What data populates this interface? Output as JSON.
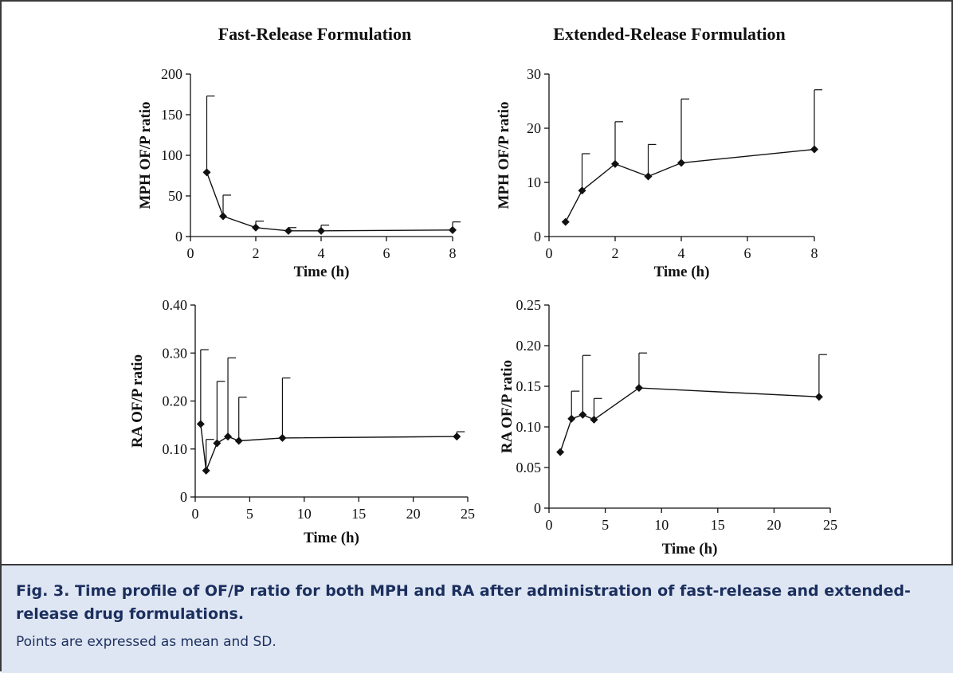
{
  "chart_data": [
    {
      "type": "line",
      "title": "Fast-Release Formulation",
      "xlabel": "Time (h)",
      "ylabel": "MPH OF/P ratio",
      "x_scale": "categorical",
      "xticks": [
        "0",
        "2",
        "4",
        "6",
        "8"
      ],
      "yticks": [
        "0",
        "50",
        "100",
        "150",
        "200"
      ],
      "ylim": [
        0,
        200
      ],
      "x": [
        0.5,
        1,
        2,
        3,
        4,
        8
      ],
      "series": [
        {
          "values": [
            79,
            25,
            11,
            7,
            7,
            8
          ],
          "sd": [
            94,
            26,
            8,
            4,
            7,
            10
          ]
        }
      ]
    },
    {
      "type": "line",
      "title": "Extended-Release Formulation",
      "xlabel": "Time (h)",
      "ylabel": "MPH OF/P ratio",
      "x_scale": "categorical",
      "xticks": [
        "0",
        "2",
        "4",
        "6",
        "8"
      ],
      "yticks": [
        "0",
        "10",
        "20",
        "30"
      ],
      "ylim": [
        0,
        30
      ],
      "x": [
        0.5,
        1,
        2,
        3,
        4,
        8
      ],
      "series": [
        {
          "values": [
            2.7,
            8.5,
            13.4,
            11.1,
            13.6,
            16.1
          ],
          "sd": [
            0,
            6.8,
            7.8,
            5.9,
            11.8,
            11.0
          ]
        }
      ]
    },
    {
      "type": "line",
      "title": "",
      "xlabel": "Time (h)",
      "ylabel": "RA OF/P ratio",
      "x_scale": "linear",
      "xticks": [
        "0",
        "5",
        "10",
        "15",
        "20",
        "25"
      ],
      "yticks": [
        "0",
        "0.10",
        "0.20",
        "0.30",
        "0.40"
      ],
      "ylim": [
        0,
        0.4
      ],
      "x": [
        0.5,
        1,
        2,
        3,
        4,
        8,
        24
      ],
      "series": [
        {
          "values": [
            0.152,
            0.055,
            0.112,
            0.126,
            0.117,
            0.123,
            0.126
          ],
          "sd": [
            0.155,
            0.065,
            0.129,
            0.164,
            0.091,
            0.125,
            0.01
          ]
        }
      ]
    },
    {
      "type": "line",
      "title": "",
      "xlabel": "Time (h)",
      "ylabel": "RA OF/P ratio",
      "x_scale": "linear",
      "xticks": [
        "0",
        "5",
        "10",
        "15",
        "20",
        "25"
      ],
      "yticks": [
        "0",
        "0.05",
        "0.10",
        "0.15",
        "0.20",
        "0.25"
      ],
      "ylim": [
        0,
        0.25
      ],
      "x": [
        1,
        2,
        3,
        4,
        8,
        24
      ],
      "series": [
        {
          "values": [
            0.069,
            0.11,
            0.115,
            0.109,
            0.148,
            0.137
          ],
          "sd": [
            0,
            0.034,
            0.073,
            0.026,
            0.043,
            0.052
          ]
        }
      ]
    }
  ],
  "caption": {
    "fig_num": "Fig. 3.",
    "title": "Time profile of OF/P ratio for both MPH and RA after administration of fast-release and extended-release drug formulations.",
    "note": "Points are expressed as mean and SD."
  }
}
